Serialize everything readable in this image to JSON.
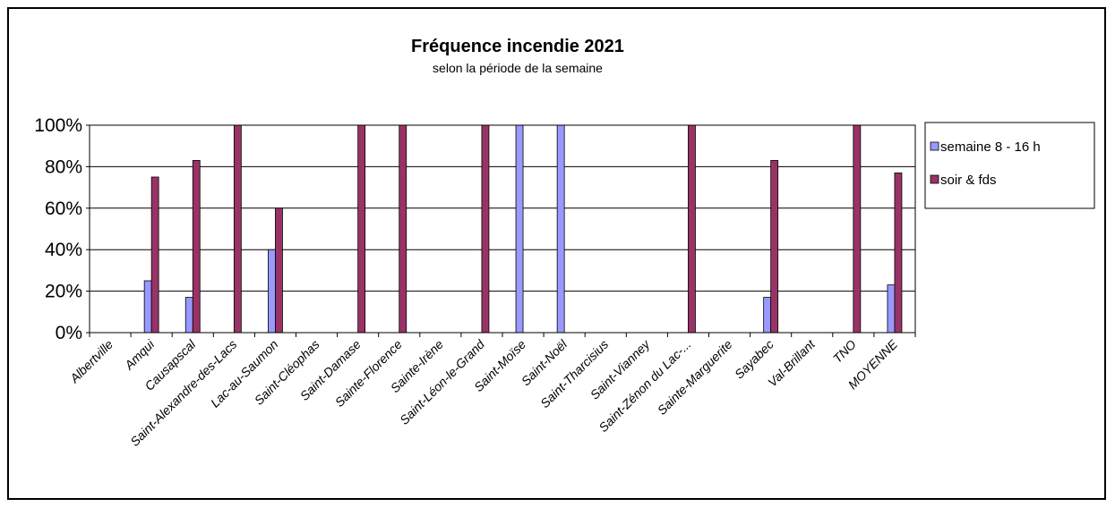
{
  "chart_data": {
    "type": "bar",
    "title": "Fréquence incendie 2021",
    "subtitle": "selon la période de la semaine",
    "xlabel": "",
    "ylabel": "",
    "ylim": [
      0,
      100
    ],
    "y_ticks": [
      "0%",
      "20%",
      "40%",
      "60%",
      "80%",
      "100%"
    ],
    "grid": true,
    "legend_position": "right",
    "categories": [
      "Albertville",
      "Amqui",
      "Causapscal",
      "Saint-Alexandre-des-Lacs",
      "Lac-au-Saumon",
      "Saint-Cléophas",
      "Saint-Damase",
      "Sainte-Florence",
      "Sainte-Irène",
      "Saint-Léon-le-Grand",
      "Saint-Moïse",
      "Saint-Noël",
      "Saint-Tharcisius",
      "Saint-Vianney",
      "Saint-Zénon du Lac-...",
      "Sainte-Marguerite",
      "Sayabec",
      "Val-Brillant",
      "TNO",
      "MOYENNE"
    ],
    "series": [
      {
        "name": "semaine 8 - 16 h",
        "color": "#9999ff",
        "values": [
          0,
          25,
          17,
          0,
          40,
          0,
          0,
          0,
          0,
          0,
          100,
          100,
          0,
          0,
          0,
          0,
          17,
          0,
          0,
          23
        ]
      },
      {
        "name": "soir & fds",
        "color": "#993366",
        "values": [
          0,
          75,
          83,
          100,
          60,
          0,
          100,
          100,
          0,
          100,
          0,
          0,
          0,
          0,
          100,
          0,
          83,
          0,
          100,
          77
        ]
      }
    ]
  }
}
